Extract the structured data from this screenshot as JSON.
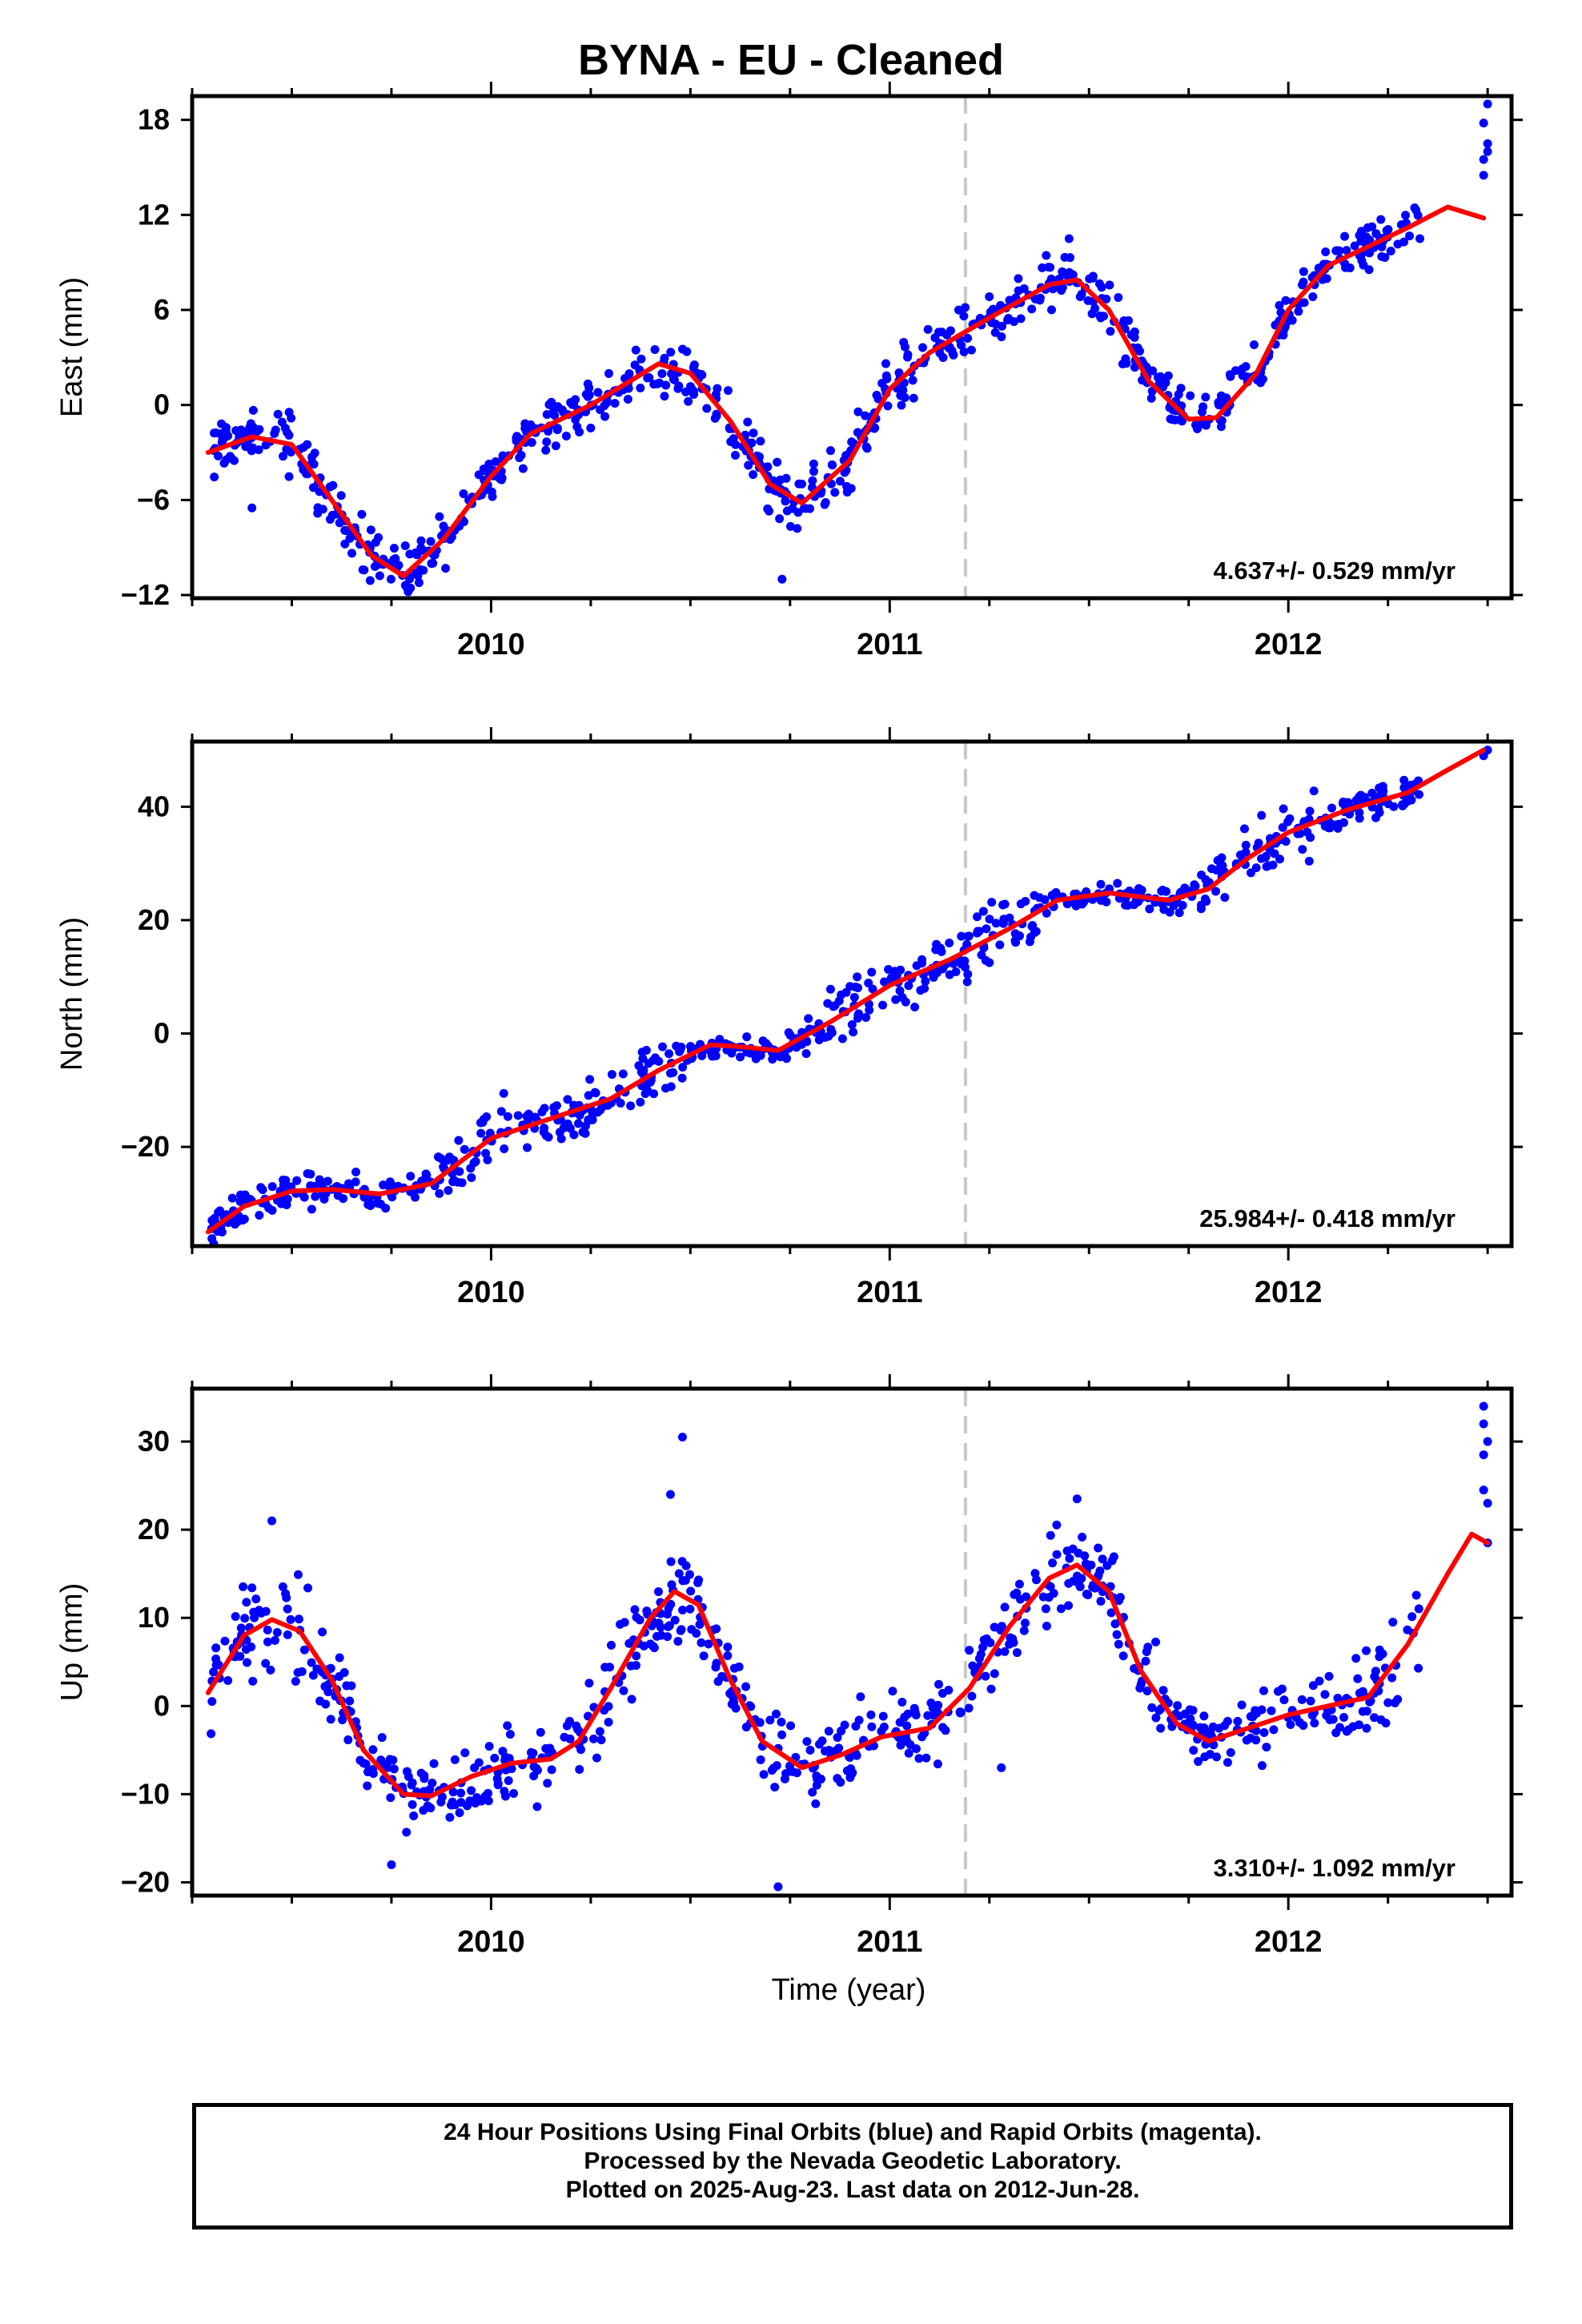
{
  "title": "BYNA  - EU - Cleaned",
  "footer": {
    "line1": "24 Hour Positions Using Final Orbits (blue) and Rapid Orbits (magenta).",
    "line2": "Processed by the Nevada Geodetic Laboratory.",
    "line3": "Plotted on 2025-Aug-23. Last data on 2012-Jun-28."
  },
  "colors": {
    "points": "#0000ff",
    "fit": "#ff0000",
    "marker": "#c8c8c8",
    "axes": "#000000"
  },
  "chart_data": [
    {
      "type": "scatter",
      "ylabel": "East (mm)",
      "xlabel": "",
      "xlim": [
        2009.25,
        2012.56
      ],
      "ylim": [
        -12.2,
        19.5
      ],
      "yticks": [
        -12,
        -6,
        0,
        6,
        12,
        18
      ],
      "xticks": [
        2010,
        2011,
        2012
      ],
      "rate_label": "4.637+/- 0.529 mm/yr",
      "vertical_marker": 2011.19,
      "fit": [
        [
          2009.29,
          -3.0
        ],
        [
          2009.4,
          -2.0
        ],
        [
          2009.5,
          -2.5
        ],
        [
          2009.6,
          -6.0
        ],
        [
          2009.7,
          -9.5
        ],
        [
          2009.78,
          -10.8
        ],
        [
          2009.88,
          -8.5
        ],
        [
          2010.0,
          -4.5
        ],
        [
          2010.1,
          -1.8
        ],
        [
          2010.25,
          0.0
        ],
        [
          2010.42,
          2.6
        ],
        [
          2010.5,
          2.0
        ],
        [
          2010.6,
          -1.0
        ],
        [
          2010.7,
          -5.0
        ],
        [
          2010.78,
          -6.2
        ],
        [
          2010.9,
          -3.5
        ],
        [
          2011.0,
          1.0
        ],
        [
          2011.1,
          3.3
        ],
        [
          2011.25,
          5.5
        ],
        [
          2011.4,
          7.6
        ],
        [
          2011.47,
          7.9
        ],
        [
          2011.55,
          6.0
        ],
        [
          2011.65,
          1.5
        ],
        [
          2011.75,
          -0.9
        ],
        [
          2011.82,
          -0.8
        ],
        [
          2011.92,
          2.0
        ],
        [
          2012.0,
          6.0
        ],
        [
          2012.1,
          8.8
        ],
        [
          2012.2,
          10.0
        ],
        [
          2012.3,
          11.2
        ],
        [
          2012.4,
          12.5
        ],
        [
          2012.49,
          11.8
        ]
      ],
      "clusters": [
        {
          "x0": 2009.29,
          "x1": 2009.45,
          "y0": -4.5,
          "y1": 0.0,
          "n": 45
        },
        {
          "x0": 2009.45,
          "x1": 2009.6,
          "y0": -4.0,
          "y1": 2.0,
          "n": 35
        },
        {
          "x0": 2009.6,
          "x1": 2009.72,
          "y0": -9.0,
          "y1": -4.0,
          "n": 35
        },
        {
          "x0": 2009.72,
          "x1": 2009.85,
          "y0": -11.5,
          "y1": -7.0,
          "n": 35
        },
        {
          "x0": 2009.85,
          "x1": 2010.0,
          "y0": -9.0,
          "y1": -4.0,
          "n": 40
        },
        {
          "x0": 2010.0,
          "x1": 2010.15,
          "y0": -5.0,
          "y1": -1.0,
          "n": 40
        },
        {
          "x0": 2010.15,
          "x1": 2010.3,
          "y0": -1.5,
          "y1": 3.5,
          "n": 40
        },
        {
          "x0": 2010.3,
          "x1": 2010.55,
          "y0": -0.5,
          "y1": 4.0,
          "n": 55
        },
        {
          "x0": 2010.55,
          "x1": 2010.68,
          "y0": -4.0,
          "y1": 1.5,
          "n": 35
        },
        {
          "x0": 2010.68,
          "x1": 2010.78,
          "y0": -10.5,
          "y1": -5.5,
          "n": 35
        },
        {
          "x0": 2010.78,
          "x1": 2010.95,
          "y0": -7.0,
          "y1": -1.5,
          "n": 40
        },
        {
          "x0": 2010.95,
          "x1": 2011.1,
          "y0": -1.5,
          "y1": 4.0,
          "n": 40
        },
        {
          "x0": 2011.1,
          "x1": 2011.3,
          "y0": 3.0,
          "y1": 7.5,
          "n": 45
        },
        {
          "x0": 2011.3,
          "x1": 2011.5,
          "y0": 4.5,
          "y1": 9.0,
          "n": 45
        },
        {
          "x0": 2011.5,
          "x1": 2011.62,
          "y0": 0.0,
          "y1": 6.0,
          "n": 30
        },
        {
          "x0": 2011.62,
          "x1": 2011.72,
          "y0": -6.0,
          "y1": -2.0,
          "n": 30
        },
        {
          "x0": 2011.72,
          "x1": 2011.85,
          "y0": -2.0,
          "y1": 2.0,
          "n": 30
        },
        {
          "x0": 2011.85,
          "x1": 2012.0,
          "y0": 1.0,
          "y1": 7.0,
          "n": 35
        },
        {
          "x0": 2012.0,
          "x1": 2012.15,
          "y0": 6.0,
          "y1": 10.0,
          "n": 35
        },
        {
          "x0": 2012.15,
          "x1": 2012.33,
          "y0": 8.0,
          "y1": 13.0,
          "n": 40
        }
      ],
      "points": [
        [
          2012.49,
          14.5
        ],
        [
          2012.5,
          16.0
        ],
        [
          2012.5,
          19.0
        ],
        [
          2012.49,
          15.5
        ],
        [
          2012.5,
          16.5
        ],
        [
          2012.49,
          17.8
        ],
        [
          2011.45,
          10.5
        ],
        [
          2010.73,
          -11.0
        ],
        [
          2009.4,
          -6.5
        ],
        [
          2012.33,
          10.5
        ]
      ]
    },
    {
      "type": "scatter",
      "ylabel": "North (mm)",
      "xlabel": "",
      "xlim": [
        2009.25,
        2012.56
      ],
      "ylim": [
        -37.5,
        51.5
      ],
      "yticks": [
        -20,
        0,
        20,
        40
      ],
      "xticks": [
        2010,
        2011,
        2012
      ],
      "rate_label": "25.984+/- 0.418 mm/yr",
      "vertical_marker": 2011.19,
      "fit": [
        [
          2009.29,
          -35.0
        ],
        [
          2009.38,
          -30.5
        ],
        [
          2009.5,
          -27.8
        ],
        [
          2009.6,
          -27.5
        ],
        [
          2009.72,
          -28.3
        ],
        [
          2009.85,
          -26.5
        ],
        [
          2010.0,
          -18.5
        ],
        [
          2010.15,
          -15.0
        ],
        [
          2010.3,
          -11.5
        ],
        [
          2010.42,
          -6.5
        ],
        [
          2010.55,
          -2.0
        ],
        [
          2010.62,
          -2.3
        ],
        [
          2010.72,
          -3.0
        ],
        [
          2010.85,
          2.0
        ],
        [
          2011.0,
          8.5
        ],
        [
          2011.15,
          13.0
        ],
        [
          2011.3,
          18.5
        ],
        [
          2011.42,
          23.5
        ],
        [
          2011.55,
          24.8
        ],
        [
          2011.7,
          23.5
        ],
        [
          2011.8,
          25.5
        ],
        [
          2011.9,
          31.0
        ],
        [
          2012.0,
          35.5
        ],
        [
          2012.15,
          39.5
        ],
        [
          2012.3,
          42.5
        ],
        [
          2012.4,
          46.5
        ],
        [
          2012.49,
          50.0
        ]
      ],
      "clusters": [
        {
          "x0": 2009.29,
          "x1": 2009.45,
          "y0": -35.0,
          "y1": -26.0,
          "n": 40
        },
        {
          "x0": 2009.45,
          "x1": 2009.85,
          "y0": -31.0,
          "y1": -23.0,
          "n": 80
        },
        {
          "x0": 2009.85,
          "x1": 2010.2,
          "y0": -29.0,
          "y1": -12.0,
          "n": 70
        },
        {
          "x0": 2010.2,
          "x1": 2010.5,
          "y0": -15.0,
          "y1": -2.0,
          "n": 70
        },
        {
          "x0": 2010.5,
          "x1": 2010.78,
          "y0": -6.0,
          "y1": 1.0,
          "n": 60
        },
        {
          "x0": 2010.78,
          "x1": 2011.1,
          "y0": -4.0,
          "y1": 12.0,
          "n": 70
        },
        {
          "x0": 2011.1,
          "x1": 2011.4,
          "y0": 7.0,
          "y1": 24.0,
          "n": 70
        },
        {
          "x0": 2011.4,
          "x1": 2011.78,
          "y0": 20.0,
          "y1": 27.0,
          "n": 80
        },
        {
          "x0": 2011.78,
          "x1": 2012.1,
          "y0": 23.0,
          "y1": 38.0,
          "n": 70
        },
        {
          "x0": 2012.1,
          "x1": 2012.33,
          "y0": 36.0,
          "y1": 45.0,
          "n": 60
        }
      ],
      "points": [
        [
          2012.49,
          49.0
        ],
        [
          2012.5,
          50.0
        ],
        [
          2009.55,
          -31.0
        ],
        [
          2011.25,
          12.5
        ],
        [
          2012.3,
          41.0
        ]
      ]
    },
    {
      "type": "scatter",
      "ylabel": "Up (mm)",
      "xlabel": "Time (year)",
      "xlim": [
        2009.25,
        2012.56
      ],
      "ylim": [
        -21.5,
        36.0
      ],
      "yticks": [
        -20,
        -10,
        0,
        10,
        20,
        30
      ],
      "xticks": [
        2010,
        2011,
        2012
      ],
      "rate_label": "3.310+/- 1.092 mm/yr",
      "vertical_marker": 2011.19,
      "fit": [
        [
          2009.29,
          1.5
        ],
        [
          2009.38,
          8.0
        ],
        [
          2009.45,
          9.8
        ],
        [
          2009.52,
          8.5
        ],
        [
          2009.6,
          3.0
        ],
        [
          2009.68,
          -5.0
        ],
        [
          2009.78,
          -10.0
        ],
        [
          2009.85,
          -10.2
        ],
        [
          2009.95,
          -8.0
        ],
        [
          2010.05,
          -6.5
        ],
        [
          2010.15,
          -6.0
        ],
        [
          2010.22,
          -4.0
        ],
        [
          2010.3,
          2.0
        ],
        [
          2010.4,
          10.0
        ],
        [
          2010.46,
          13.0
        ],
        [
          2010.52,
          11.5
        ],
        [
          2010.6,
          3.0
        ],
        [
          2010.68,
          -4.0
        ],
        [
          2010.78,
          -7.0
        ],
        [
          2010.88,
          -5.5
        ],
        [
          2010.98,
          -3.5
        ],
        [
          2011.1,
          -2.5
        ],
        [
          2011.2,
          2.0
        ],
        [
          2011.3,
          9.0
        ],
        [
          2011.4,
          14.5
        ],
        [
          2011.47,
          16.0
        ],
        [
          2011.55,
          13.0
        ],
        [
          2011.63,
          4.0
        ],
        [
          2011.72,
          -2.0
        ],
        [
          2011.8,
          -4.0
        ],
        [
          2011.9,
          -2.5
        ],
        [
          2012.0,
          -1.0
        ],
        [
          2012.1,
          0.0
        ],
        [
          2012.2,
          1.0
        ],
        [
          2012.3,
          7.0
        ],
        [
          2012.4,
          15.0
        ],
        [
          2012.46,
          19.5
        ],
        [
          2012.5,
          18.5
        ]
      ],
      "clusters": [
        {
          "x0": 2009.29,
          "x1": 2009.38,
          "y0": -6.0,
          "y1": 8.0,
          "n": 25
        },
        {
          "x0": 2009.38,
          "x1": 2009.6,
          "y0": 0.0,
          "y1": 16.0,
          "n": 50
        },
        {
          "x0": 2009.6,
          "x1": 2009.72,
          "y0": -10.0,
          "y1": 2.0,
          "n": 30
        },
        {
          "x0": 2009.72,
          "x1": 2009.95,
          "y0": -16.0,
          "y1": -4.0,
          "n": 55
        },
        {
          "x0": 2009.95,
          "x1": 2010.22,
          "y0": -13.0,
          "y1": -1.0,
          "n": 55
        },
        {
          "x0": 2010.22,
          "x1": 2010.38,
          "y0": -5.0,
          "y1": 10.0,
          "n": 35
        },
        {
          "x0": 2010.38,
          "x1": 2010.55,
          "y0": 6.0,
          "y1": 22.0,
          "n": 50
        },
        {
          "x0": 2010.55,
          "x1": 2010.68,
          "y0": -3.0,
          "y1": 10.0,
          "n": 30
        },
        {
          "x0": 2010.68,
          "x1": 2010.92,
          "y0": -13.0,
          "y1": -1.0,
          "n": 55
        },
        {
          "x0": 2010.92,
          "x1": 2011.2,
          "y0": -11.0,
          "y1": 3.0,
          "n": 55
        },
        {
          "x0": 2011.2,
          "x1": 2011.35,
          "y0": 2.0,
          "y1": 15.0,
          "n": 35
        },
        {
          "x0": 2011.35,
          "x1": 2011.55,
          "y0": 8.0,
          "y1": 21.0,
          "n": 45
        },
        {
          "x0": 2011.55,
          "x1": 2011.68,
          "y0": -1.0,
          "y1": 13.0,
          "n": 30
        },
        {
          "x0": 2011.68,
          "x1": 2011.9,
          "y0": -9.0,
          "y1": 1.0,
          "n": 50
        },
        {
          "x0": 2011.9,
          "x1": 2012.18,
          "y0": -7.0,
          "y1": 5.0,
          "n": 55
        },
        {
          "x0": 2012.18,
          "x1": 2012.33,
          "y0": -1.0,
          "y1": 15.0,
          "n": 35
        }
      ],
      "points": [
        [
          2010.48,
          30.5
        ],
        [
          2010.72,
          -20.5
        ],
        [
          2009.45,
          21.0
        ],
        [
          2009.75,
          -18.0
        ],
        [
          2011.28,
          -7.0
        ],
        [
          2012.49,
          34.0
        ],
        [
          2012.49,
          32.0
        ],
        [
          2012.5,
          30.0
        ],
        [
          2012.49,
          28.5
        ],
        [
          2012.5,
          23.0
        ],
        [
          2012.49,
          24.5
        ],
        [
          2012.5,
          18.5
        ],
        [
          2011.47,
          23.5
        ],
        [
          2010.45,
          24.0
        ]
      ]
    }
  ]
}
